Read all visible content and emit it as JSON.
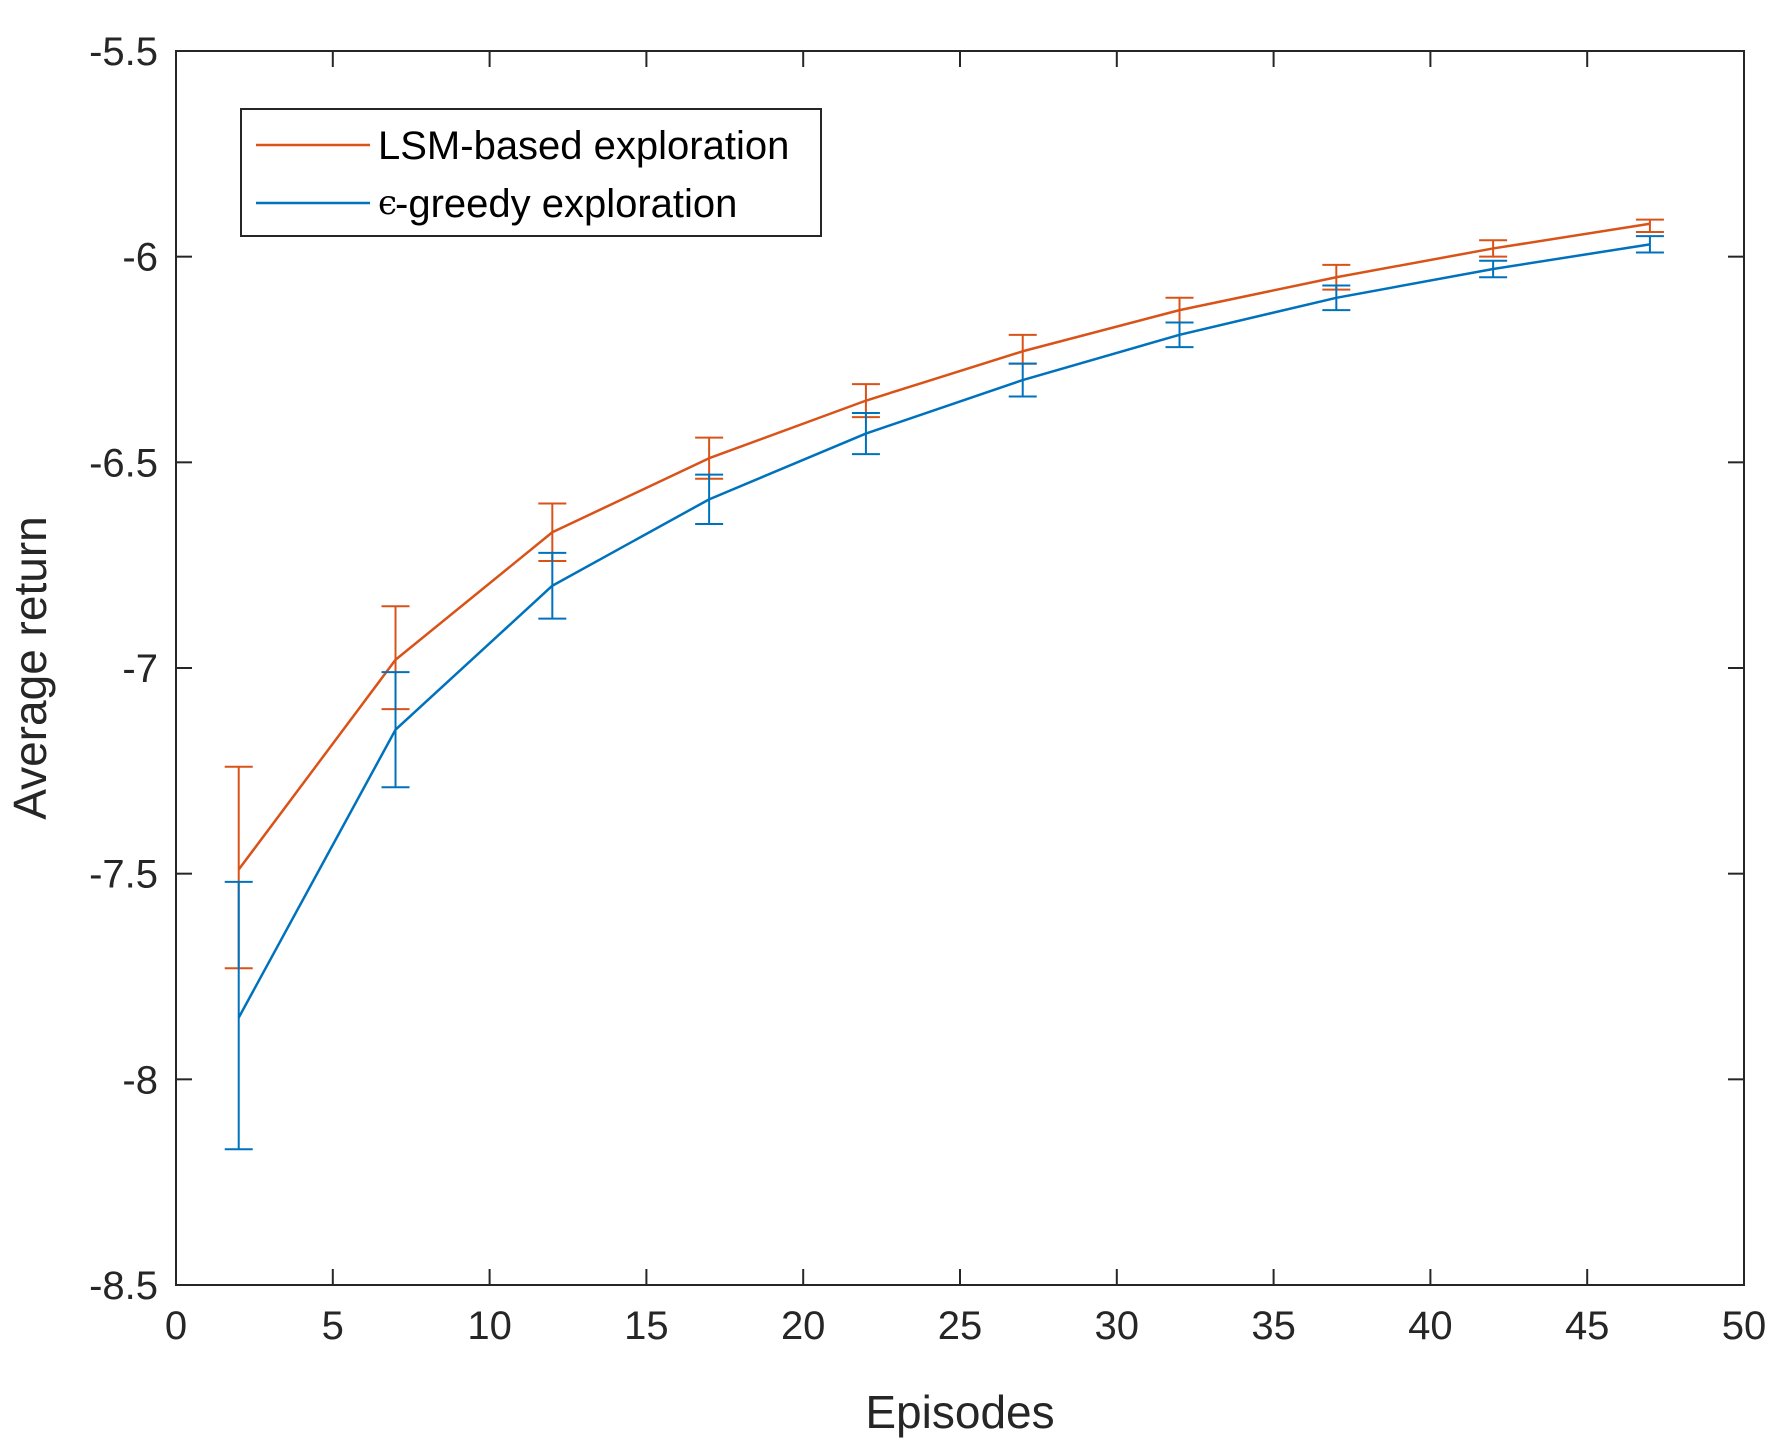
{
  "chart_data": {
    "type": "line",
    "title": "",
    "xlabel": "Episodes",
    "ylabel": "Average return",
    "xlim": [
      0,
      50
    ],
    "ylim": [
      -8.5,
      -5.5
    ],
    "xticks": [
      0,
      5,
      10,
      15,
      20,
      25,
      30,
      35,
      40,
      45,
      50
    ],
    "yticks": [
      -8.5,
      -8,
      -7.5,
      -7,
      -6.5,
      -6,
      -5.5
    ],
    "xtick_labels": [
      "0",
      "5",
      "10",
      "15",
      "20",
      "25",
      "30",
      "35",
      "40",
      "45",
      "50"
    ],
    "ytick_labels": [
      "-8.5",
      "-8",
      "-7.5",
      "-7",
      "-6.5",
      "-6",
      "-5.5"
    ],
    "grid": false,
    "legend_position": "top-left",
    "x": [
      2,
      7,
      12,
      17,
      22,
      27,
      32,
      37,
      42,
      47
    ],
    "series": [
      {
        "name": "LSM-based exploration",
        "legend_label": "LSM-based exploration",
        "color": "#D95319",
        "values": [
          -7.49,
          -6.98,
          -6.67,
          -6.49,
          -6.35,
          -6.23,
          -6.13,
          -6.05,
          -5.98,
          -5.92
        ],
        "error_upper": [
          -7.24,
          -6.85,
          -6.6,
          -6.44,
          -6.31,
          -6.19,
          -6.1,
          -6.02,
          -5.96,
          -5.91
        ],
        "error_lower": [
          -7.73,
          -7.1,
          -6.74,
          -6.54,
          -6.39,
          -6.26,
          -6.16,
          -6.08,
          -6.0,
          -5.94
        ]
      },
      {
        "name": "ϵ-greedy exploration",
        "legend_symbol": "ϵ",
        "legend_label": "-greedy exploration",
        "color": "#0072BD",
        "values": [
          -7.85,
          -7.15,
          -6.8,
          -6.59,
          -6.43,
          -6.3,
          -6.19,
          -6.1,
          -6.03,
          -5.97
        ],
        "error_upper": [
          -7.52,
          -7.01,
          -6.72,
          -6.53,
          -6.38,
          -6.26,
          -6.16,
          -6.07,
          -6.01,
          -5.95
        ],
        "error_lower": [
          -8.17,
          -7.29,
          -6.88,
          -6.65,
          -6.48,
          -6.34,
          -6.22,
          -6.13,
          -6.05,
          -5.99
        ]
      }
    ]
  }
}
